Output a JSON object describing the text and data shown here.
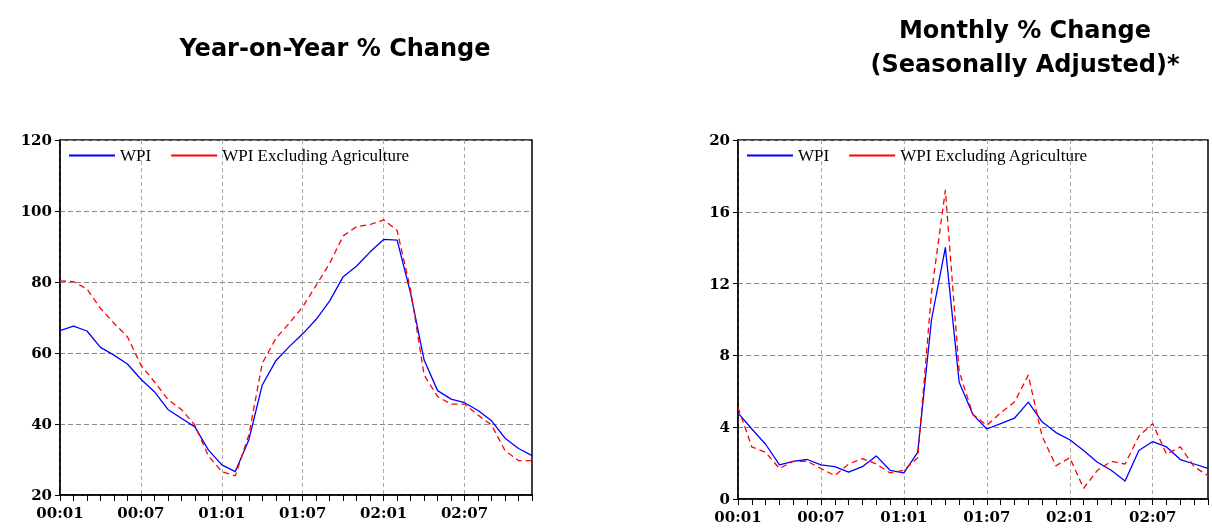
{
  "chart_data": [
    {
      "type": "line",
      "title": "Year-on-Year % Change",
      "categories": [
        "00:01",
        null,
        null,
        null,
        null,
        null,
        "00:07",
        null,
        null,
        null,
        null,
        null,
        "01:01",
        null,
        null,
        null,
        null,
        null,
        "01:07",
        null,
        null,
        null,
        null,
        null,
        "02:01",
        null,
        null,
        null,
        null,
        null,
        "02:07",
        null,
        null,
        null,
        null,
        null
      ],
      "series": [
        {
          "name": "WPI",
          "color": "#0000ff",
          "line_style": "solid",
          "values": [
            66.3,
            67.6,
            66.2,
            61.6,
            59.4,
            56.9,
            52.6,
            49.1,
            44.1,
            41.6,
            39.2,
            32.7,
            28.5,
            26.6,
            35.5,
            51,
            57.8,
            61.8,
            65.4,
            69.5,
            74.7,
            81.5,
            84.5,
            88.5,
            92,
            91.8,
            76.8,
            58,
            49.4,
            47,
            46,
            43.8,
            40.9,
            36,
            33.1,
            31.1
          ]
        },
        {
          "name": "WPI Excluding Agriculture",
          "color": "#ff0000",
          "line_style": "dashed",
          "values": [
            80.3,
            80.1,
            78,
            72.6,
            68.4,
            64.6,
            56.6,
            51.9,
            46.9,
            44.1,
            39.7,
            31,
            26.6,
            25.4,
            36.9,
            57.1,
            64.1,
            68.4,
            73,
            79.1,
            85.3,
            93,
            95.6,
            96.2,
            97.5,
            94.5,
            77.7,
            53.8,
            47.7,
            45.6,
            45.6,
            42.5,
            39.7,
            32.5,
            29.7,
            29.7
          ]
        }
      ],
      "ylim": [
        20,
        120
      ],
      "yticks": [
        20,
        40,
        60,
        80,
        100,
        120
      ],
      "grid": true,
      "legend": "top left",
      "marker": "none"
    },
    {
      "type": "line",
      "title": "Monthly % Change\n(Seasonally Adjusted)*",
      "categories": [
        "00:01",
        null,
        null,
        null,
        null,
        null,
        "00:07",
        null,
        null,
        null,
        null,
        null,
        "01:01",
        null,
        null,
        null,
        null,
        null,
        "01:07",
        null,
        null,
        null,
        null,
        null,
        "02:01",
        null,
        null,
        null,
        null,
        null,
        "02:07",
        null,
        null,
        null,
        null
      ],
      "series": [
        {
          "name": "WPI",
          "color": "#0000ff",
          "line_style": "solid",
          "values": [
            4.8,
            3.9,
            3.05,
            1.9,
            2.1,
            2.2,
            1.9,
            1.8,
            1.5,
            1.8,
            2.4,
            1.6,
            1.45,
            2.6,
            10,
            14,
            6.5,
            4.7,
            3.9,
            4.2,
            4.5,
            5.4,
            4.3,
            3.7,
            3.3,
            2.7,
            2.05,
            1.6,
            1,
            2.7,
            3.2,
            2.9,
            2.2,
            1.95,
            1.7
          ]
        },
        {
          "name": "WPI Excluding Agriculture",
          "color": "#ff0000",
          "line_style": "dashed",
          "values": [
            5.1,
            2.9,
            2.6,
            1.7,
            2.1,
            2.1,
            1.7,
            1.3,
            1.95,
            2.25,
            1.95,
            1.45,
            1.6,
            2.3,
            11.5,
            17.2,
            7.1,
            4.7,
            4.1,
            4.8,
            5.4,
            6.9,
            3.5,
            1.85,
            2.3,
            0.6,
            1.6,
            2.1,
            1.95,
            3.5,
            4.2,
            2.5,
            2.9,
            1.8,
            1.3
          ]
        }
      ],
      "ylim": [
        0,
        20
      ],
      "yticks": [
        0,
        4,
        8,
        12,
        16,
        20
      ],
      "grid": true,
      "legend": "top left",
      "marker": "none"
    }
  ]
}
